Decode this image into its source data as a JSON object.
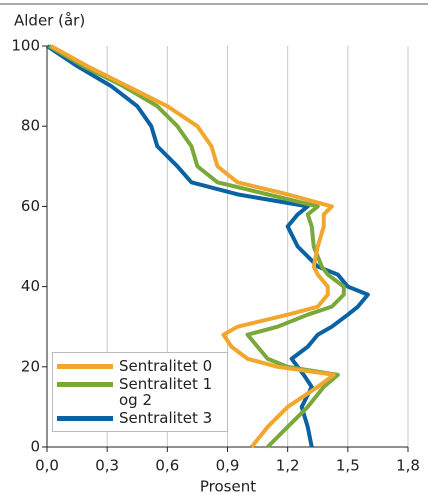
{
  "chart_data": {
    "type": "line",
    "title": "Alder (år)",
    "x_label": "Prosent",
    "y": [
      0,
      5,
      10,
      15,
      18,
      20,
      22,
      25,
      28,
      30,
      33,
      35,
      38,
      40,
      43,
      45,
      50,
      55,
      58,
      60,
      63,
      66,
      70,
      75,
      80,
      85,
      90,
      95,
      100
    ],
    "series": [
      {
        "name": "Sentralitet 0",
        "color": "#f2a62d",
        "values": [
          1.02,
          1.1,
          1.2,
          1.35,
          1.43,
          1.15,
          1.0,
          0.92,
          0.88,
          0.95,
          1.2,
          1.35,
          1.4,
          1.4,
          1.35,
          1.33,
          1.35,
          1.38,
          1.38,
          1.42,
          1.2,
          0.95,
          0.85,
          0.82,
          0.75,
          0.6,
          0.4,
          0.2,
          0.02
        ]
      },
      {
        "name": "Sentralitet 1 og 2",
        "color": "#7aa83a",
        "values": [
          1.1,
          1.2,
          1.3,
          1.38,
          1.45,
          1.2,
          1.1,
          1.05,
          1.0,
          1.15,
          1.3,
          1.42,
          1.48,
          1.48,
          1.4,
          1.37,
          1.33,
          1.32,
          1.3,
          1.35,
          1.1,
          0.85,
          0.75,
          0.72,
          0.65,
          0.55,
          0.38,
          0.18,
          0.01
        ]
      },
      {
        "name": "Sentralitet 3",
        "color": "#0a62a3",
        "values": [
          1.32,
          1.3,
          1.27,
          1.32,
          1.28,
          1.25,
          1.22,
          1.3,
          1.35,
          1.42,
          1.5,
          1.55,
          1.6,
          1.5,
          1.45,
          1.35,
          1.25,
          1.2,
          1.25,
          1.3,
          0.95,
          0.72,
          0.65,
          0.55,
          0.52,
          0.45,
          0.32,
          0.15,
          0.0
        ]
      }
    ],
    "xlim": [
      0,
      1.8
    ],
    "xticks": [
      {
        "value": 0,
        "label": "0,0"
      },
      {
        "value": 0.3,
        "label": "0,3"
      },
      {
        "value": 0.6,
        "label": "0,6"
      },
      {
        "value": 0.9,
        "label": "0,9"
      },
      {
        "value": 1.2,
        "label": "1,2"
      },
      {
        "value": 1.5,
        "label": "1,5"
      },
      {
        "value": 1.8,
        "label": "1,8"
      }
    ],
    "ylim": [
      0,
      100
    ],
    "yticks": [
      0,
      20,
      40,
      60,
      80,
      100
    ],
    "grid": true,
    "legend": "lower left"
  }
}
